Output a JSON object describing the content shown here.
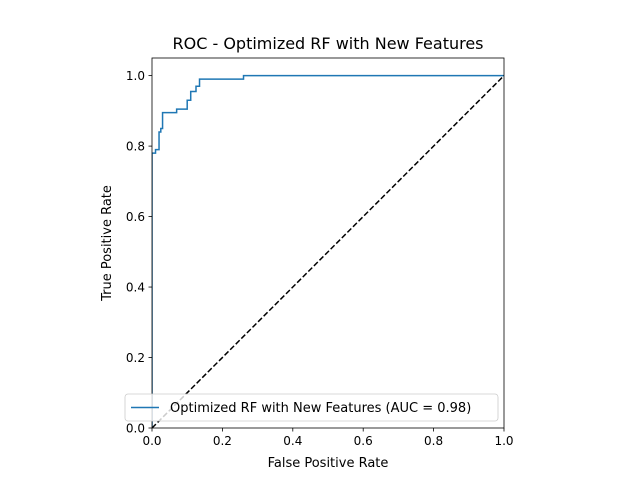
{
  "chart_data": {
    "type": "line",
    "title": "ROC - Optimized RF with New Features",
    "xlabel": "False Positive Rate",
    "ylabel": "True Positive Rate",
    "xlim": [
      0,
      1
    ],
    "ylim": [
      0,
      1.05
    ],
    "xticks": [
      0.0,
      0.2,
      0.4,
      0.6,
      0.8,
      1.0
    ],
    "yticks": [
      0.0,
      0.2,
      0.4,
      0.6,
      0.8,
      1.0
    ],
    "xtick_labels": [
      "0.0",
      "0.2",
      "0.4",
      "0.6",
      "0.8",
      "1.0"
    ],
    "ytick_labels": [
      "0.0",
      "0.2",
      "0.4",
      "0.6",
      "0.8",
      "1.0"
    ],
    "grid": false,
    "legend_position": "lower-right",
    "series": [
      {
        "name": "Optimized RF with New Features (AUC = 0.98)",
        "color": "#1f77b4",
        "style": "solid",
        "x": [
          0.0,
          0.0,
          0.01,
          0.01,
          0.02,
          0.02,
          0.025,
          0.025,
          0.03,
          0.03,
          0.07,
          0.07,
          0.1,
          0.1,
          0.11,
          0.11,
          0.125,
          0.125,
          0.135,
          0.135,
          0.26,
          0.26,
          1.0
        ],
        "y": [
          0.0,
          0.78,
          0.78,
          0.79,
          0.79,
          0.84,
          0.84,
          0.85,
          0.85,
          0.895,
          0.895,
          0.905,
          0.905,
          0.93,
          0.93,
          0.955,
          0.955,
          0.97,
          0.97,
          0.99,
          0.99,
          1.0,
          1.0
        ]
      },
      {
        "color": "#000000",
        "style": "dashed",
        "x": [
          0.0,
          1.0
        ],
        "y": [
          0.0,
          1.0
        ]
      }
    ]
  }
}
